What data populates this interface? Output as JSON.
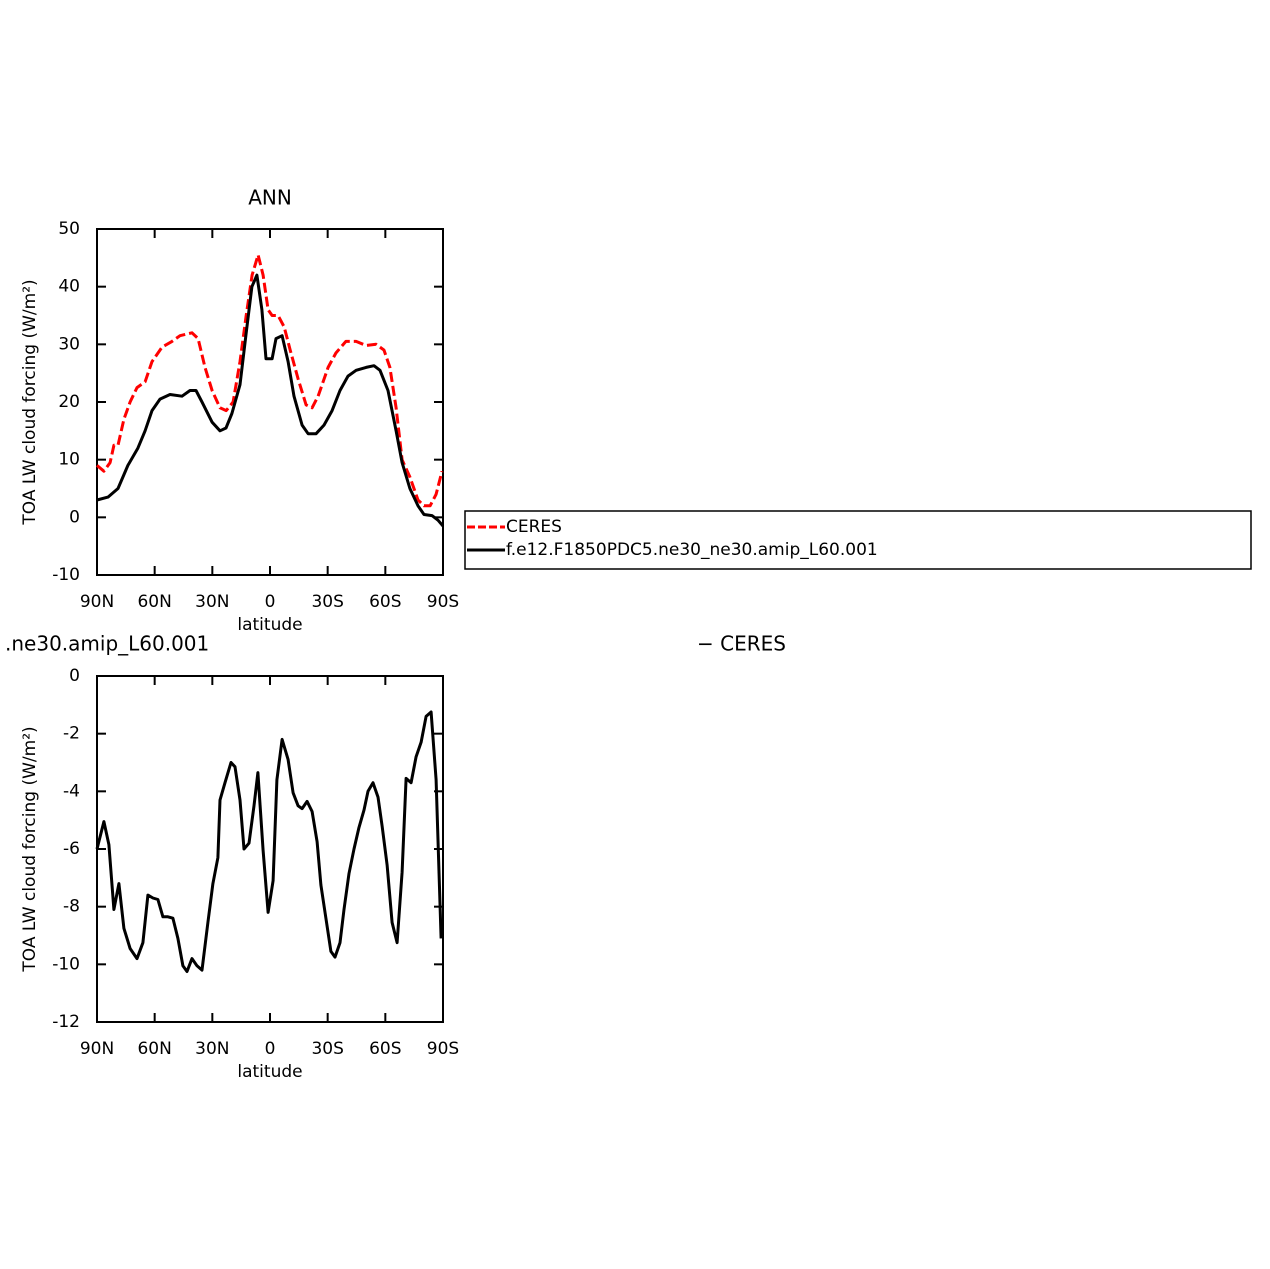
{
  "chart_data": [
    {
      "type": "line",
      "title": "ANN",
      "xlabel": "latitude",
      "ylabel": "TOA LW cloud forcing (W/m²)",
      "xlim": [
        90,
        -90
      ],
      "xticks": [
        {
          "value": 90,
          "label": "90N"
        },
        {
          "value": 60,
          "label": "60N"
        },
        {
          "value": 30,
          "label": "30N"
        },
        0,
        {
          "value": -30,
          "label": "30S"
        },
        {
          "value": -60,
          "label": "60S"
        },
        {
          "value": -90,
          "label": "90S"
        }
      ],
      "ylim": [
        -10,
        50
      ],
      "yticks": [
        -10,
        0,
        10,
        20,
        30,
        40,
        50
      ],
      "series": [
        {
          "name": "CERES",
          "color": "#ff0000",
          "dashed": true,
          "x": [
            90,
            86.4,
            83.2,
            81.2,
            79.1,
            76,
            72.8,
            69.2,
            65,
            61.4,
            56.2,
            51,
            46.8,
            40.6,
            37.4,
            33.8,
            30.1,
            26,
            22.8,
            19.2,
            15.6,
            12.4,
            9.3,
            6.2,
            3.6,
            1,
            -1.1,
            -4.2,
            -7.4,
            -10.5,
            -14.6,
            -18.8,
            -21.9,
            -25,
            -30.2,
            -34.3,
            -39.5,
            -44.8,
            -50,
            -55.2,
            -59.3,
            -62.4,
            -65.6,
            -68.7,
            -72.8,
            -77,
            -80.1,
            -83.3,
            -86.4,
            -89.5
          ],
          "values": [
            9,
            8,
            9.5,
            12.5,
            12.5,
            17,
            20,
            22.5,
            23.5,
            27,
            29.5,
            30.5,
            31.5,
            32,
            31,
            26,
            22,
            19,
            18.5,
            20,
            27,
            35,
            42,
            45.5,
            42,
            36,
            35,
            35,
            33,
            29,
            24,
            19.5,
            19,
            21,
            26,
            28.5,
            30.5,
            30.5,
            29.8,
            30,
            29,
            26,
            19,
            10,
            7,
            3,
            2,
            2,
            4,
            8
          ]
        },
        {
          "name": "f.e12.F1850PDC5.ne30_ne30.amip_L60.001",
          "color": "#000000",
          "dashed": false,
          "x": [
            90,
            84.3,
            79.1,
            73.9,
            68.7,
            65,
            61.4,
            57.2,
            52,
            45.8,
            41.6,
            38.5,
            35.4,
            30.1,
            26,
            22.9,
            19.8,
            15.6,
            12.4,
            9.4,
            6.8,
            4.2,
            2.1,
            -1.1,
            -3.1,
            -6.3,
            -9.4,
            -12.5,
            -16.7,
            -19.8,
            -24,
            -28.1,
            -32.3,
            -36.4,
            -40.6,
            -44.8,
            -50,
            -54.1,
            -57.2,
            -61.4,
            -65.6,
            -68.7,
            -72.8,
            -77,
            -80.1,
            -84.3,
            -87.4,
            -90
          ],
          "values": [
            3,
            3.5,
            5,
            9,
            12,
            15,
            18.5,
            20.5,
            21.3,
            21,
            22,
            22,
            20,
            16.5,
            15,
            15.5,
            18,
            23,
            32,
            40,
            42,
            36,
            27.5,
            27.5,
            31,
            31.5,
            27,
            21,
            16,
            14.5,
            14.5,
            16,
            18.5,
            22,
            24.5,
            25.5,
            26,
            26.3,
            25.5,
            22,
            15,
            9.5,
            5,
            2,
            0.5,
            0.3,
            -0.5,
            -1.5
          ]
        }
      ]
    },
    {
      "type": "line",
      "title_parts": [
        ".ne30.amip_L60.001",
        "− CERES"
      ],
      "xlabel": "latitude",
      "ylabel": "TOA LW cloud forcing (W/m²)",
      "xlim": [
        90,
        -90
      ],
      "xticks": [
        {
          "value": 90,
          "label": "90N"
        },
        {
          "value": 60,
          "label": "60N"
        },
        {
          "value": 30,
          "label": "30N"
        },
        0,
        {
          "value": -30,
          "label": "30S"
        },
        {
          "value": -60,
          "label": "60S"
        },
        {
          "value": -90,
          "label": "90S"
        }
      ],
      "ylim": [
        -12,
        0
      ],
      "yticks": [
        -12,
        -10,
        -8,
        -6,
        -4,
        -2,
        0
      ],
      "series": [
        {
          "color": "#000000",
          "dashed": false,
          "x": [
            90,
            86.4,
            83.8,
            81.2,
            78.6,
            76,
            72.8,
            69.2,
            66.1,
            63.5,
            60.9,
            58.3,
            55.7,
            53.1,
            50.5,
            47.9,
            45.3,
            43.2,
            40.6,
            38,
            35.4,
            32.3,
            29.7,
            27.1,
            26,
            23.4,
            20.3,
            18.2,
            15.6,
            13.5,
            10.9,
            8.3,
            6.3,
            3.6,
            1,
            -1.6,
            -3.6,
            -6.3,
            -9.4,
            -12,
            -14.6,
            -16.7,
            -19.3,
            -21.9,
            -24.5,
            -26.5,
            -29.1,
            -31.7,
            -33.8,
            -36.4,
            -38.5,
            -41.1,
            -43.7,
            -46.3,
            -48.9,
            -51,
            -53.6,
            -56.2,
            -58.3,
            -60.9,
            -63.5,
            -66.1,
            -68.7,
            -70.8,
            -73.4,
            -76,
            -78.6,
            -81.2,
            -83.8,
            -86.4,
            -89
          ],
          "values": [
            -6,
            -5.05,
            -5.85,
            -8.1,
            -7.2,
            -8.75,
            -9.45,
            -9.8,
            -9.25,
            -7.6,
            -7.7,
            -7.75,
            -8.35,
            -8.35,
            -8.4,
            -9.1,
            -10.05,
            -10.25,
            -9.8,
            -10.05,
            -10.2,
            -8.55,
            -7.2,
            -6.3,
            -4.3,
            -3.7,
            -3.0,
            -3.15,
            -4.3,
            -6,
            -5.8,
            -4.5,
            -3.35,
            -6.05,
            -8.2,
            -7.1,
            -3.6,
            -2.2,
            -2.9,
            -4.05,
            -4.5,
            -4.6,
            -4.35,
            -4.7,
            -5.75,
            -7.25,
            -8.4,
            -9.55,
            -9.75,
            -9.25,
            -8.1,
            -6.85,
            -6.0,
            -5.25,
            -4.65,
            -4.0,
            -3.7,
            -4.2,
            -5.2,
            -6.55,
            -8.55,
            -9.25,
            -6.8,
            -3.55,
            -3.7,
            -2.8,
            -2.3,
            -1.4,
            -1.25,
            -3.6,
            -9.1
          ]
        }
      ]
    }
  ]
}
